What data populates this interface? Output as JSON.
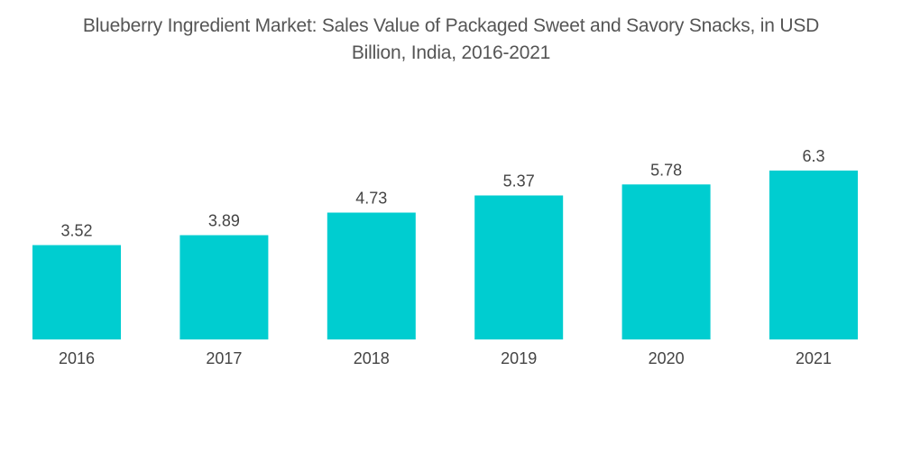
{
  "chart_data": {
    "type": "bar",
    "title": "Blueberry Ingredient Market: Sales Value of Packaged Sweet and Savory Snacks, in USD Billion, India, 2016-2021",
    "title_lines": [
      "Blueberry Ingredient Market: Sales Value of Packaged Sweet and Savory Snacks, in USD",
      "Billion, India, 2016-2021"
    ],
    "categories": [
      "2016",
      "2017",
      "2018",
      "2019",
      "2020",
      "2021"
    ],
    "values": [
      3.52,
      3.89,
      4.73,
      5.37,
      5.78,
      6.3
    ],
    "value_labels": [
      "3.52",
      "3.89",
      "4.73",
      "5.37",
      "5.78",
      "6.3"
    ],
    "xlabel": "",
    "ylabel": "",
    "ylim": [
      0,
      7
    ],
    "grid": false,
    "legend": "none",
    "bar_color": "#00cdd0"
  }
}
